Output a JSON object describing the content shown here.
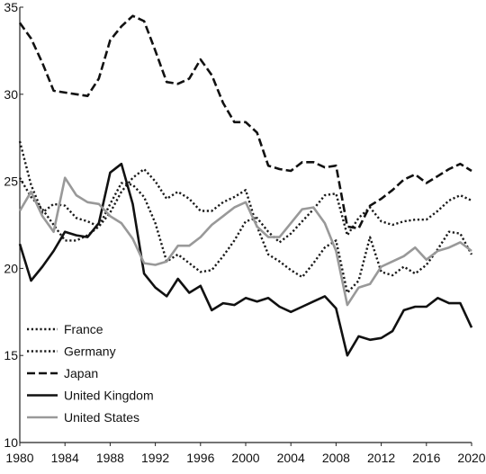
{
  "chart_data": {
    "type": "line",
    "title": "",
    "xlabel": "",
    "ylabel": "",
    "xlim": [
      1980,
      2020
    ],
    "ylim": [
      10,
      35
    ],
    "x_ticks": [
      1980,
      1984,
      1988,
      1992,
      1996,
      2000,
      2004,
      2008,
      2012,
      2016,
      2020
    ],
    "y_ticks": [
      10,
      15,
      20,
      25,
      30,
      35
    ],
    "grid": false,
    "legend_position": "bottom-left",
    "x": [
      1980,
      1981,
      1982,
      1983,
      1984,
      1985,
      1986,
      1987,
      1988,
      1989,
      1990,
      1991,
      1992,
      1993,
      1994,
      1995,
      1996,
      1997,
      1998,
      1999,
      2000,
      2001,
      2002,
      2003,
      2004,
      2005,
      2006,
      2007,
      2008,
      2009,
      2010,
      2011,
      2012,
      2013,
      2014,
      2015,
      2016,
      2017,
      2018,
      2019,
      2020
    ],
    "series": [
      {
        "name": "France",
        "style": "dotted",
        "color": "#1a1a1a",
        "values": [
          25.2,
          24.1,
          23.4,
          22.5,
          21.6,
          21.6,
          21.9,
          22.4,
          23.7,
          24.9,
          24.8,
          24.1,
          22.6,
          20.4,
          20.8,
          20.3,
          19.8,
          19.9,
          20.7,
          21.6,
          22.7,
          22.9,
          22.1,
          21.5,
          22.0,
          22.7,
          23.4,
          24.2,
          24.3,
          21.9,
          22.9,
          23.5,
          22.7,
          22.5,
          22.7,
          22.8,
          22.8,
          23.3,
          23.9,
          24.2,
          23.9
        ]
      },
      {
        "name": "Germany",
        "style": "dotted",
        "color": "#1a1a1a",
        "values": [
          27.3,
          24.8,
          23.2,
          23.7,
          23.6,
          22.9,
          22.7,
          22.4,
          23.2,
          24.4,
          25.2,
          25.7,
          25.0,
          24.0,
          24.4,
          24.0,
          23.3,
          23.3,
          23.8,
          24.1,
          24.5,
          22.4,
          20.8,
          20.4,
          19.9,
          19.5,
          20.3,
          21.2,
          21.6,
          18.6,
          19.3,
          21.8,
          19.8,
          19.6,
          20.1,
          19.7,
          20.2,
          21.1,
          22.1,
          22.0,
          20.8
        ]
      },
      {
        "name": "Japan",
        "style": "dashed",
        "color": "#111111",
        "values": [
          34.1,
          33.2,
          31.8,
          30.2,
          30.1,
          30.0,
          29.9,
          30.9,
          33.1,
          33.9,
          34.5,
          34.2,
          32.5,
          30.7,
          30.6,
          30.9,
          32.0,
          31.1,
          29.5,
          28.4,
          28.4,
          27.8,
          25.9,
          25.7,
          25.6,
          26.1,
          26.1,
          25.8,
          25.9,
          22.4,
          22.3,
          23.6,
          24.0,
          24.5,
          25.1,
          25.4,
          24.9,
          25.3,
          25.7,
          26.0,
          25.6
        ]
      },
      {
        "name": "United Kingdom",
        "style": "solid",
        "color": "#111111",
        "values": [
          21.4,
          19.3,
          20.1,
          21.0,
          22.1,
          21.9,
          21.8,
          22.6,
          25.5,
          26.0,
          23.7,
          19.7,
          18.9,
          18.4,
          19.4,
          18.6,
          19.0,
          17.6,
          18.0,
          17.9,
          18.3,
          18.1,
          18.3,
          17.8,
          17.5,
          17.8,
          18.1,
          18.4,
          17.7,
          15.0,
          16.1,
          15.9,
          16.0,
          16.4,
          17.6,
          17.8,
          17.8,
          18.3,
          18.0,
          18.0,
          16.6
        ]
      },
      {
        "name": "United States",
        "style": "solid",
        "color": "#999999",
        "values": [
          23.3,
          24.4,
          23.0,
          22.1,
          25.2,
          24.2,
          23.8,
          23.7,
          23.0,
          22.6,
          21.7,
          20.3,
          20.2,
          20.4,
          21.3,
          21.3,
          21.8,
          22.5,
          23.0,
          23.5,
          23.8,
          22.4,
          21.8,
          21.8,
          22.6,
          23.4,
          23.5,
          22.6,
          21.0,
          17.9,
          18.9,
          19.1,
          20.1,
          20.4,
          20.7,
          21.2,
          20.5,
          21.0,
          21.2,
          21.5,
          21.0
        ]
      }
    ]
  }
}
